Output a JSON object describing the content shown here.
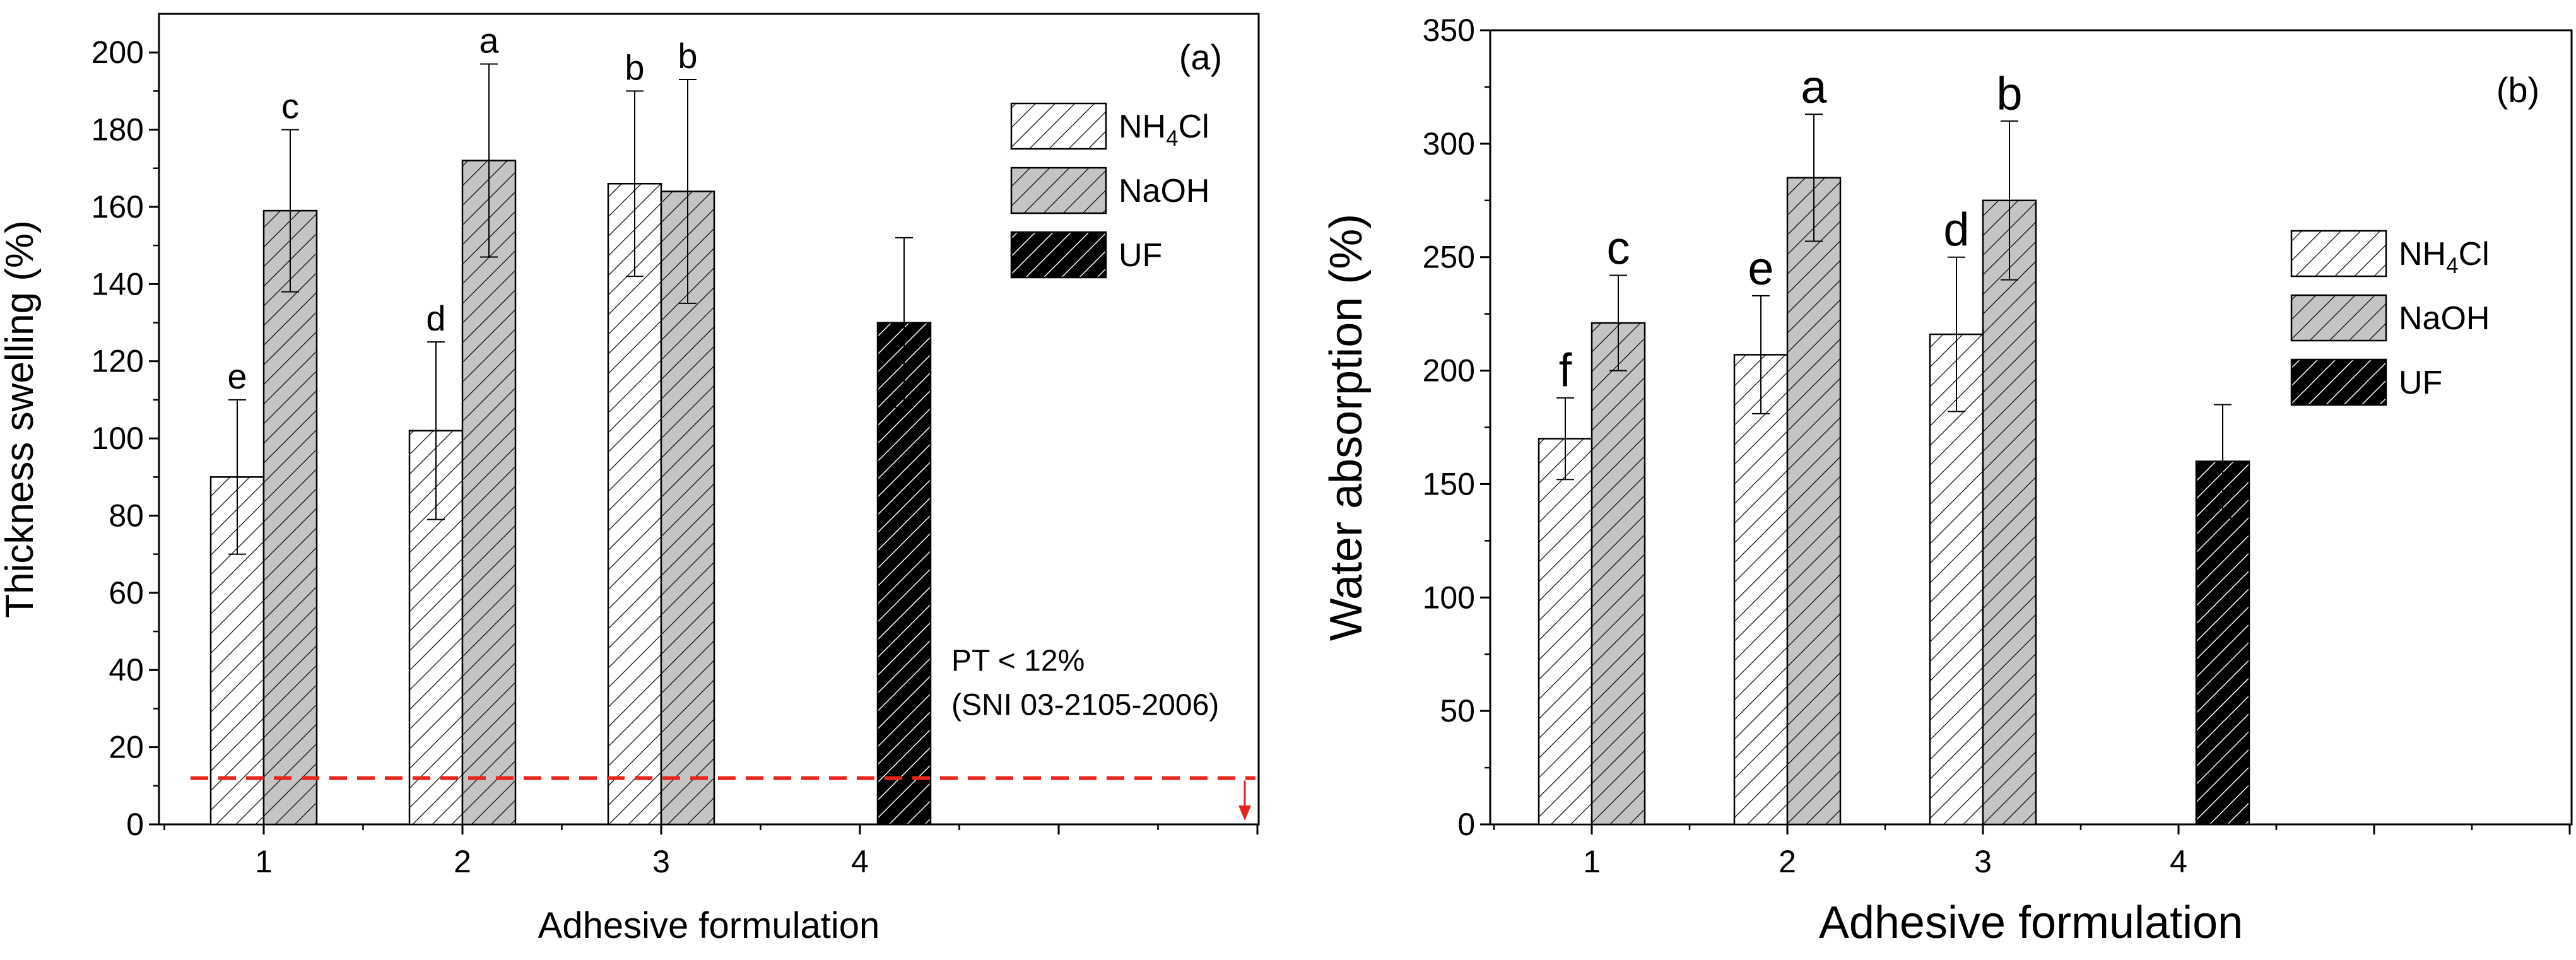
{
  "chart_data": [
    {
      "type": "bar",
      "panel_label": "(a)",
      "xlabel": "Adhesive formulation",
      "ylabel": "Thickness swelling (%)",
      "ylim": [
        0,
        210
      ],
      "y_ticks": [
        0,
        20,
        40,
        60,
        80,
        100,
        120,
        140,
        160,
        180,
        200
      ],
      "x_ticks": [
        "1",
        "2",
        "3",
        "4"
      ],
      "legend_position": "top-right",
      "series": [
        {
          "name": "NH4Cl",
          "pattern": "light-hatch",
          "values": [
            90,
            102,
            166,
            null
          ],
          "errors": [
            20,
            23,
            24,
            null
          ],
          "letters": [
            "e",
            "d",
            "b",
            null
          ]
        },
        {
          "name": "NaOH",
          "pattern": "gray-hatch",
          "values": [
            159,
            172,
            164,
            null
          ],
          "errors": [
            21,
            25,
            29,
            null
          ],
          "letters": [
            "c",
            "a",
            "b",
            null
          ]
        },
        {
          "name": "UF",
          "pattern": "dark-hatch",
          "values": [
            null,
            null,
            null,
            130
          ],
          "errors": [
            null,
            null,
            null,
            22
          ],
          "letters": [
            null,
            null,
            null,
            null
          ]
        }
      ],
      "reference_line": {
        "y": 12,
        "color": "#e8251c",
        "label_line1": "PT < 12%",
        "label_line2": "(SNI 03-2105-2006)"
      }
    },
    {
      "type": "bar",
      "panel_label": "(b)",
      "xlabel": "Adhesive formulation",
      "ylabel": "Water absorption (%)",
      "ylim": [
        0,
        350
      ],
      "y_ticks": [
        0,
        50,
        100,
        150,
        200,
        250,
        300,
        350
      ],
      "x_ticks": [
        "1",
        "2",
        "3",
        "4"
      ],
      "legend_position": "center-right",
      "series": [
        {
          "name": "NH4Cl",
          "pattern": "light-hatch",
          "values": [
            170,
            207,
            216,
            null
          ],
          "errors": [
            18,
            26,
            34,
            null
          ],
          "letters": [
            "f",
            "e",
            "d",
            null
          ]
        },
        {
          "name": "NaOH",
          "pattern": "gray-hatch",
          "values": [
            221,
            285,
            275,
            null
          ],
          "errors": [
            21,
            28,
            35,
            null
          ],
          "letters": [
            "c",
            "a",
            "b",
            null
          ]
        },
        {
          "name": "UF",
          "pattern": "dark-hatch",
          "values": [
            null,
            null,
            null,
            160
          ],
          "errors": [
            null,
            null,
            null,
            25
          ],
          "letters": [
            null,
            null,
            null,
            null
          ]
        }
      ]
    }
  ]
}
